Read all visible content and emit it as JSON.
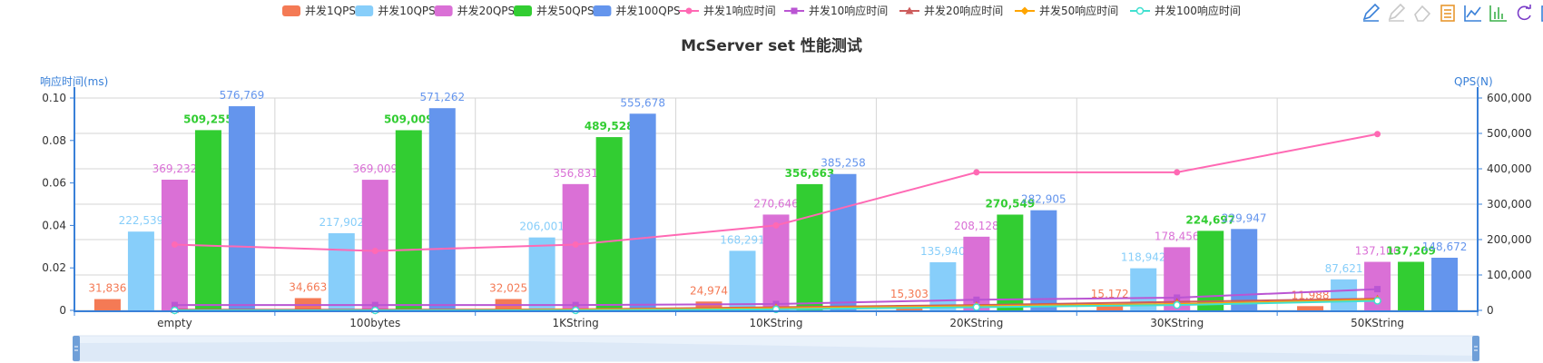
{
  "chart_data": {
    "type": "bar",
    "title": "McServer set 性能测试",
    "categories": [
      "empty",
      "100bytes",
      "1KString",
      "10KString",
      "20KString",
      "30KString",
      "50KString"
    ],
    "y_left": {
      "name": "响应时间(ms)",
      "ticks": [
        "0",
        "0.02",
        "0.04",
        "0.06",
        "0.08",
        "0.10"
      ],
      "ylim": [
        0,
        0.1
      ]
    },
    "y_right": {
      "name": "QPS(N)",
      "ticks": [
        "0",
        "100,000",
        "200,000",
        "300,000",
        "400,000",
        "500,000",
        "600,000"
      ],
      "ylim": [
        0,
        600000
      ]
    },
    "bar_series": [
      {
        "name": "并发1QPS",
        "color": "#f47a55",
        "values": [
          31836,
          34663,
          32025,
          24974,
          15303,
          15172,
          11988
        ],
        "labels": [
          "31,836",
          "34,663",
          "32,025",
          "24,974",
          "15,303",
          "15,172",
          "11,988"
        ]
      },
      {
        "name": "并发10QPS",
        "color": "#87cefa",
        "values": [
          222539,
          217902,
          206001,
          168291,
          135940,
          118942,
          87621
        ],
        "labels": [
          "222,539",
          "217,902",
          "206,001",
          "168,291",
          "135,940",
          "118,942",
          "87,621"
        ]
      },
      {
        "name": "并发20QPS",
        "color": "#da70d6",
        "values": [
          369232,
          369009,
          356831,
          270646,
          208128,
          178456,
          137106
        ],
        "labels": [
          "369,232",
          "369,009",
          "356,831",
          "270,646",
          "208,128",
          "178,456",
          "137,106"
        ]
      },
      {
        "name": "并发50QPS",
        "color": "#32cd32",
        "values": [
          509255,
          509009,
          489528,
          356663,
          270549,
          224697,
          137209
        ],
        "labels": [
          "509,255",
          "509,009",
          "489,528",
          "356,663",
          "270,549",
          "224,697",
          "137,209"
        ]
      },
      {
        "name": "并发100QPS",
        "color": "#6495ed",
        "values": [
          576769,
          571262,
          555678,
          385258,
          282905,
          229947,
          148672
        ],
        "labels": [
          "576,769",
          "571,262",
          "555,678",
          "385,258",
          "282,905",
          "229,947",
          "148,672"
        ]
      }
    ],
    "line_series": [
      {
        "name": "并发1响应时间",
        "color": "#ff69b4",
        "marker": "circle",
        "values": [
          0.031,
          0.028,
          0.031,
          0.04,
          0.065,
          0.065,
          0.083
        ]
      },
      {
        "name": "并发10响应时间",
        "color": "#ba55d3",
        "marker": "square",
        "values": [
          0.0025,
          0.0025,
          0.0025,
          0.003,
          0.005,
          0.006,
          0.01
        ]
      },
      {
        "name": "并发20响应时间",
        "color": "#cd5c5c",
        "marker": "triangle",
        "values": [
          0.0003,
          0.0003,
          0.0005,
          0.0015,
          0.0025,
          0.004,
          0.0055
        ]
      },
      {
        "name": "并发50响应时间",
        "color": "#ffa500",
        "marker": "diamond",
        "values": [
          0,
          0,
          0.0003,
          0.001,
          0.002,
          0.003,
          0.005
        ]
      },
      {
        "name": "并发100响应时间",
        "color": "#40e0d0",
        "marker": "empty-circle",
        "values": [
          0,
          0,
          0,
          0.0005,
          0.0015,
          0.0025,
          0.0045
        ]
      }
    ],
    "legend_position": "top-center",
    "grid": true
  },
  "toolbox": [
    "pen-icon",
    "pen-clear-icon",
    "eraser-icon",
    "data-view-icon",
    "line-chart-icon",
    "bar-chart-icon",
    "restore-icon",
    "save-image-icon"
  ]
}
